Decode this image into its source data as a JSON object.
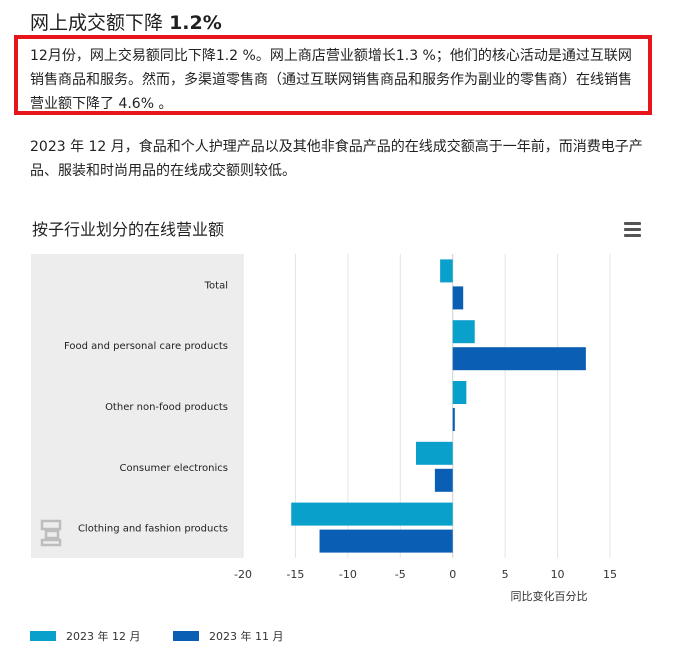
{
  "heading": {
    "text": "网上成交额下降",
    "value": "1.2%"
  },
  "highlight_text": "12月份，网上交易额同比下降1.2 %。网上商店营业额增长1.3 %；他们的核心活动是通过互联网销售商品和服务。然而，多渠道零售商（通过互联网销售商品和服务作为副业的零售商）在线销售营业额下降了 4.6% 。",
  "paragraph": "2023 年 12 月，食品和个人护理产品以及其他非食品产品的在线成交额高于一年前，而消费电子产品、服装和时尚用品的在线成交额则较低。",
  "menu_icon": "hamburger-menu-icon",
  "logo_icon": "cbs-logo-icon",
  "chart_data": {
    "type": "bar",
    "orientation": "horizontal",
    "title": "按子行业划分的在线营业额",
    "xlabel": "同比变化百分比",
    "ylabel": "",
    "xlim": [
      -20,
      15
    ],
    "xticks": [
      -20,
      -15,
      -10,
      -5,
      0,
      5,
      10,
      15
    ],
    "grid": true,
    "legend_position": "bottom-left",
    "categories": [
      "Total",
      "Food and personal care products",
      "Other non-food products",
      "Consumer electronics",
      "Clothing and fashion products"
    ],
    "series": [
      {
        "name": "2023 年 12 月",
        "color": "#0aa0cc",
        "values": [
          -1.2,
          2.1,
          1.3,
          -3.5,
          -15.4
        ]
      },
      {
        "name": "2023 年 11 月",
        "color": "#0a5fb4",
        "values": [
          1.0,
          12.7,
          0.2,
          -1.7,
          -12.7
        ]
      }
    ]
  }
}
